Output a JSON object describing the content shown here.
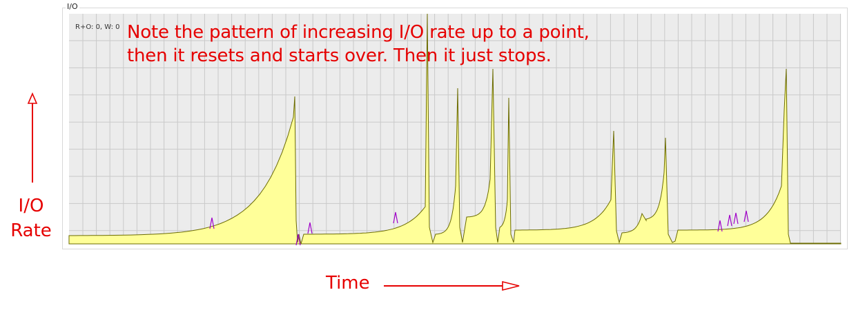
{
  "panel": {
    "title": "I/O",
    "readout": "R+O: 0, W: 0"
  },
  "annotation": {
    "line1": "Note the pattern of increasing I/O rate up to a point,",
    "line2": "then it resets and starts over.  Then it just stops."
  },
  "axis_labels": {
    "y_line1": "I/O",
    "y_line2": "Rate",
    "x": "Time"
  },
  "colors": {
    "annotation": "#e60000",
    "fill": "#ffff99",
    "line": "#6b6b00",
    "spike": "#a000c8",
    "grid": "#c9c9c9",
    "plot_bg": "#ececec"
  }
}
